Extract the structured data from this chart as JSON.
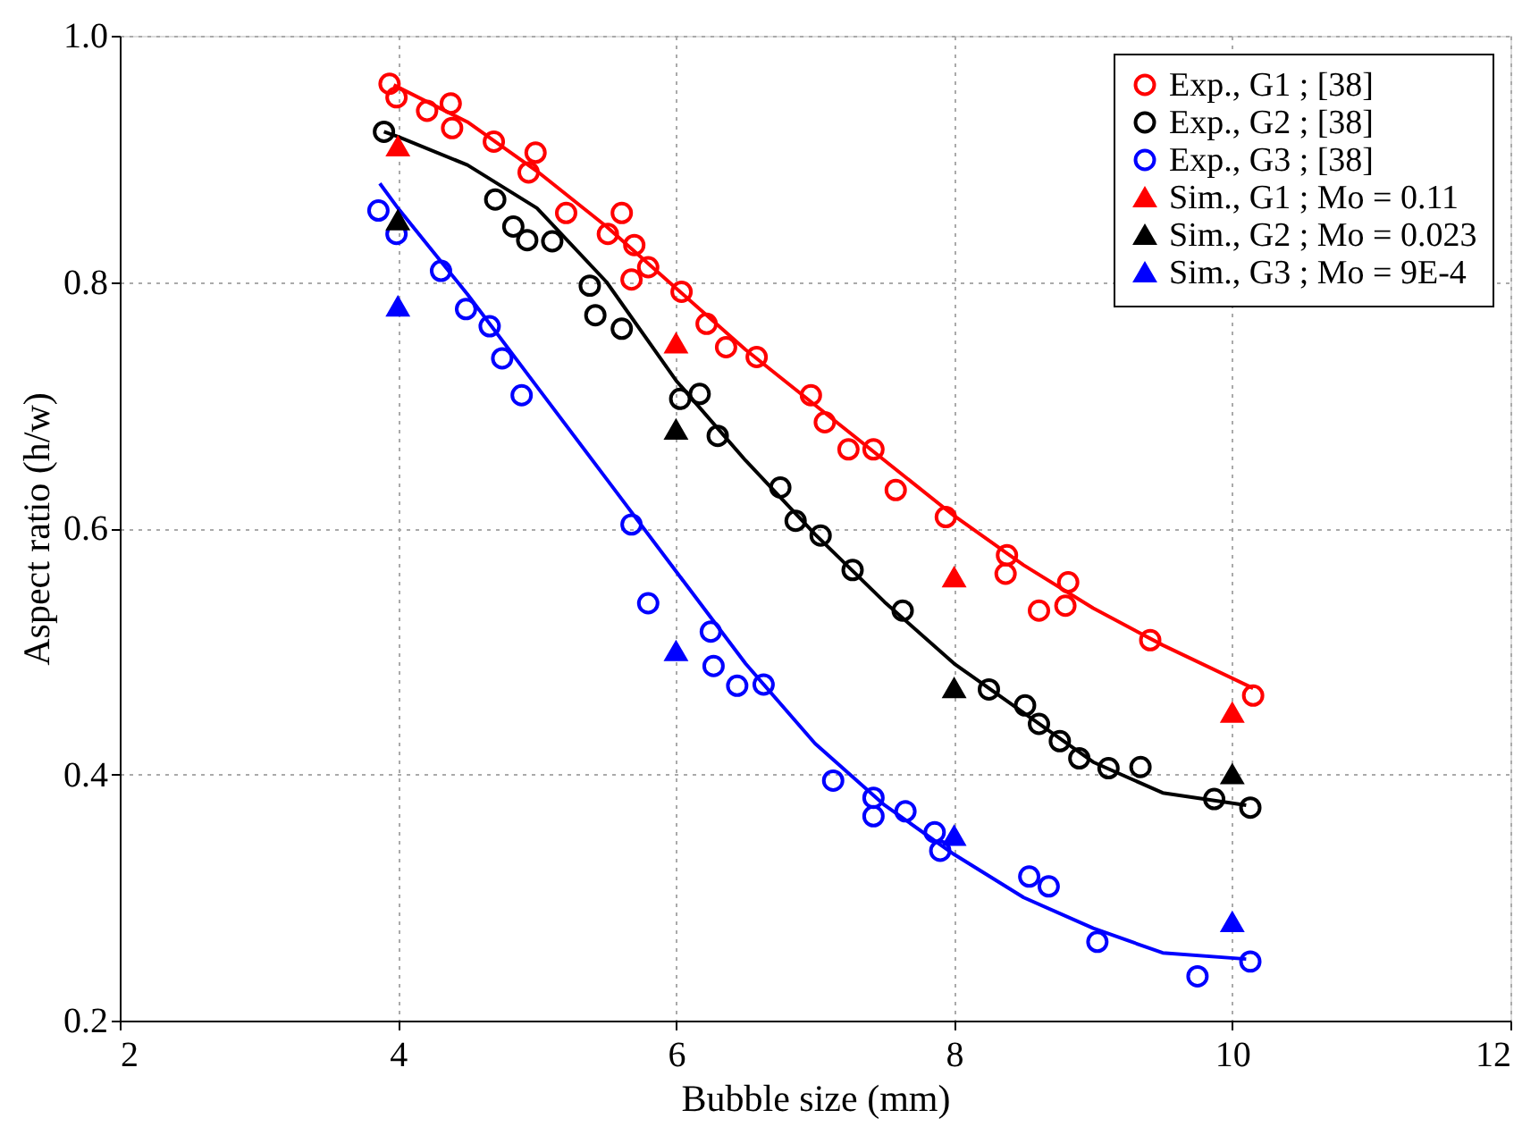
{
  "chart_data": {
    "type": "scatter",
    "xlabel": "Bubble size (mm)",
    "ylabel": "Aspect ratio (h/w)",
    "xlim": [
      2,
      12
    ],
    "xticks": [
      2,
      4,
      6,
      8,
      10,
      12
    ],
    "ylim": [
      0.2,
      1.0
    ],
    "yticks": [
      0.2,
      0.4,
      0.6,
      0.8,
      {
        "value": 1,
        "label": "1.0"
      }
    ],
    "grid": true,
    "legend": "top right",
    "series": [
      {
        "name": "Exp., G1 ; [38]",
        "marker": "circle",
        "color": "#ff0000",
        "x": [
          3.94,
          3.99,
          4.21,
          4.38,
          4.39,
          4.69,
          4.99,
          4.94,
          5.21,
          5.61,
          5.51,
          5.7,
          5.68,
          5.8,
          6.04,
          6.22,
          6.36,
          6.58,
          6.97,
          7.07,
          7.24,
          7.42,
          7.58,
          7.94,
          8.38,
          8.37,
          8.61,
          8.82,
          8.8,
          9.41,
          10.15
        ],
        "values": [
          0.961,
          0.95,
          0.939,
          0.945,
          0.925,
          0.914,
          0.905,
          0.889,
          0.856,
          0.856,
          0.839,
          0.83,
          0.802,
          0.812,
          0.792,
          0.766,
          0.747,
          0.739,
          0.708,
          0.686,
          0.664,
          0.664,
          0.631,
          0.609,
          0.578,
          0.563,
          0.533,
          0.556,
          0.537,
          0.509,
          0.464
        ]
      },
      {
        "name": "Exp., G2 ; [38]",
        "marker": "circle",
        "color": "#000000",
        "x": [
          3.9,
          4.7,
          4.83,
          4.93,
          5.11,
          5.38,
          5.42,
          5.61,
          6.03,
          6.17,
          6.3,
          6.75,
          6.86,
          7.04,
          7.27,
          7.63,
          8.25,
          8.51,
          8.61,
          8.76,
          8.9,
          9.11,
          9.34,
          9.87,
          10.13
        ],
        "values": [
          0.922,
          0.867,
          0.845,
          0.834,
          0.833,
          0.797,
          0.773,
          0.762,
          0.705,
          0.709,
          0.675,
          0.633,
          0.606,
          0.594,
          0.566,
          0.533,
          0.469,
          0.456,
          0.441,
          0.427,
          0.413,
          0.405,
          0.406,
          0.38,
          0.373
        ]
      },
      {
        "name": "Exp., G3 ; [38]",
        "marker": "circle",
        "color": "#0000ff",
        "x": [
          3.86,
          3.99,
          4.31,
          4.49,
          4.66,
          4.75,
          4.89,
          5.68,
          5.8,
          6.25,
          6.27,
          6.44,
          6.63,
          7.13,
          7.42,
          7.42,
          7.65,
          7.86,
          7.9,
          8.54,
          8.68,
          9.03,
          9.75,
          10.13
        ],
        "values": [
          0.858,
          0.839,
          0.809,
          0.778,
          0.764,
          0.738,
          0.708,
          0.603,
          0.539,
          0.516,
          0.488,
          0.472,
          0.473,
          0.395,
          0.381,
          0.366,
          0.37,
          0.353,
          0.338,
          0.317,
          0.309,
          0.264,
          0.236,
          0.248
        ]
      },
      {
        "name": "Sim., G1 ; Mo = 0.11",
        "marker": "triangle",
        "color": "#ff0000",
        "x": [
          4,
          6,
          8,
          10
        ],
        "values": [
          0.91,
          0.75,
          0.56,
          0.45
        ]
      },
      {
        "name": "Sim., G2 ; Mo = 0.023",
        "marker": "triangle",
        "color": "#000000",
        "x": [
          4,
          6,
          8,
          10
        ],
        "values": [
          0.85,
          0.68,
          0.47,
          0.4
        ]
      },
      {
        "name": "Sim., G3 ; Mo = 9E-4",
        "marker": "triangle",
        "color": "#0000ff",
        "x": [
          4,
          6,
          8,
          10
        ],
        "values": [
          0.78,
          0.5,
          0.35,
          0.28
        ]
      },
      {
        "type": "line",
        "marker": "none",
        "color": "#ff0000",
        "x": [
          3.97,
          4.5,
          5,
          5.5,
          6,
          6.5,
          7,
          7.5,
          8,
          8.5,
          9,
          9.5,
          10.15
        ],
        "values": [
          0.96,
          0.93,
          0.89,
          0.845,
          0.795,
          0.745,
          0.7,
          0.655,
          0.61,
          0.57,
          0.535,
          0.505,
          0.47
        ]
      },
      {
        "type": "line",
        "marker": "none",
        "color": "#000000",
        "x": [
          3.9,
          4,
          4.5,
          5,
          5.5,
          6,
          6.5,
          7,
          7.5,
          8,
          8.5,
          9,
          9.5,
          10.1
        ],
        "values": [
          0.922,
          0.918,
          0.895,
          0.86,
          0.8,
          0.72,
          0.655,
          0.595,
          0.54,
          0.49,
          0.45,
          0.41,
          0.385,
          0.375
        ]
      },
      {
        "type": "line",
        "marker": "none",
        "color": "#0000ff",
        "x": [
          3.87,
          4,
          4.5,
          5,
          5.5,
          6,
          6.5,
          7,
          7.5,
          8,
          8.5,
          9,
          9.5,
          10.1
        ],
        "values": [
          0.88,
          0.86,
          0.79,
          0.715,
          0.64,
          0.565,
          0.49,
          0.425,
          0.375,
          0.335,
          0.3,
          0.275,
          0.255,
          0.25
        ]
      }
    ]
  }
}
